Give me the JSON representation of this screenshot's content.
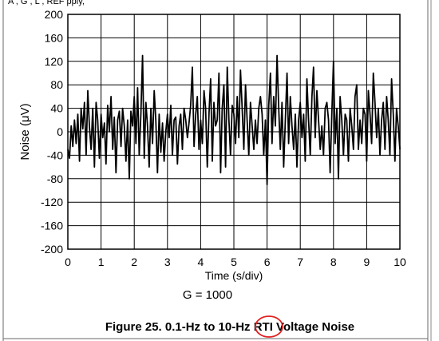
{
  "header": {
    "text": "A    ,    G    ,    L    ,    REF    pply,"
  },
  "chart_data": {
    "type": "line",
    "xlabel": "Time (s/div)",
    "ylabel": "Noise (μV)",
    "xlim": [
      0,
      10
    ],
    "ylim": [
      -200,
      200
    ],
    "x_ticks": [
      "0",
      "1",
      "2",
      "3",
      "4",
      "5",
      "6",
      "7",
      "8",
      "9",
      "10"
    ],
    "y_ticks": [
      "200",
      "160",
      "120",
      "80",
      "40",
      "0",
      "-40",
      "-80",
      "-120",
      "-160",
      "-200"
    ],
    "grid": true,
    "series": [
      {
        "x": [
          0.0,
          0.05,
          0.1,
          0.15,
          0.2,
          0.25,
          0.3,
          0.35,
          0.4,
          0.45,
          0.5,
          0.55,
          0.6,
          0.65,
          0.7,
          0.75,
          0.8,
          0.85,
          0.9,
          0.95,
          1.0,
          1.05,
          1.1,
          1.15,
          1.2,
          1.25,
          1.3,
          1.35,
          1.4,
          1.45,
          1.5,
          1.55,
          1.6,
          1.65,
          1.7,
          1.75,
          1.8,
          1.85,
          1.9,
          1.95,
          2.0,
          2.05,
          2.1,
          2.15,
          2.2,
          2.25,
          2.3,
          2.35,
          2.4,
          2.45,
          2.5,
          2.55,
          2.6,
          2.65,
          2.7,
          2.75,
          2.8,
          2.85,
          2.9,
          2.95,
          3.0,
          3.05,
          3.1,
          3.15,
          3.2,
          3.25,
          3.3,
          3.35,
          3.4,
          3.45,
          3.5,
          3.55,
          3.6,
          3.65,
          3.7,
          3.75,
          3.8,
          3.85,
          3.9,
          3.95,
          4.0,
          4.05,
          4.1,
          4.15,
          4.2,
          4.25,
          4.3,
          4.35,
          4.4,
          4.45,
          4.5,
          4.55,
          4.6,
          4.65,
          4.7,
          4.75,
          4.8,
          4.85,
          4.9,
          4.95,
          5.0,
          5.05,
          5.1,
          5.15,
          5.2,
          5.25,
          5.3,
          5.35,
          5.4,
          5.45,
          5.5,
          5.55,
          5.6,
          5.65,
          5.7,
          5.75,
          5.8,
          5.85,
          5.9,
          5.95,
          6.0,
          6.05,
          6.1,
          6.15,
          6.2,
          6.25,
          6.3,
          6.35,
          6.4,
          6.45,
          6.5,
          6.55,
          6.6,
          6.65,
          6.7,
          6.75,
          6.8,
          6.85,
          6.9,
          6.95,
          7.0,
          7.05,
          7.1,
          7.15,
          7.2,
          7.25,
          7.3,
          7.35,
          7.4,
          7.45,
          7.5,
          7.55,
          7.6,
          7.65,
          7.7,
          7.75,
          7.8,
          7.85,
          7.9,
          7.95,
          8.0,
          8.05,
          8.1,
          8.15,
          8.2,
          8.25,
          8.3,
          8.35,
          8.4,
          8.45,
          8.5,
          8.55,
          8.6,
          8.65,
          8.7,
          8.75,
          8.8,
          8.85,
          8.9,
          8.95,
          9.0,
          9.05,
          9.1,
          9.15,
          9.2,
          9.25,
          9.3,
          9.35,
          9.4,
          9.45,
          9.5,
          9.55,
          9.6,
          9.65,
          9.7,
          9.75,
          9.8,
          9.85,
          9.9,
          9.95,
          10.0
        ],
        "y": [
          -30,
          -45,
          10,
          -25,
          20,
          -20,
          30,
          -50,
          40,
          5,
          50,
          -40,
          70,
          10,
          -30,
          40,
          -60,
          50,
          20,
          -45,
          30,
          -10,
          15,
          -55,
          45,
          0,
          60,
          -30,
          25,
          -70,
          20,
          35,
          -25,
          40,
          10,
          -50,
          20,
          -80,
          35,
          10,
          60,
          -20,
          75,
          -40,
          30,
          130,
          -45,
          50,
          10,
          -60,
          40,
          -20,
          70,
          20,
          -70,
          30,
          -35,
          15,
          -50,
          0,
          30,
          -10,
          45,
          -40,
          20,
          25,
          -55,
          10,
          30,
          -30,
          40,
          20,
          -10,
          15,
          45,
          110,
          -25,
          30,
          60,
          -30,
          20,
          -20,
          70,
          40,
          -60,
          30,
          90,
          -50,
          50,
          10,
          20,
          100,
          -70,
          40,
          80,
          -60,
          110,
          20,
          -40,
          45,
          30,
          -20,
          60,
          -10,
          105,
          40,
          -30,
          80,
          20,
          -40,
          50,
          10,
          -30,
          20,
          -20,
          40,
          60,
          30,
          -40,
          20,
          -90,
          45,
          100,
          -20,
          60,
          10,
          130,
          40,
          -30,
          50,
          -60,
          20,
          100,
          -20,
          60,
          10,
          -30,
          30,
          -60,
          20,
          50,
          -10,
          30,
          -50,
          90,
          20,
          -40,
          60,
          110,
          -10,
          70,
          20,
          -30,
          10,
          -40,
          40,
          50,
          20,
          -70,
          30,
          120,
          -20,
          40,
          -80,
          60,
          20,
          -40,
          30,
          20,
          -50,
          40,
          10,
          -30,
          60,
          80,
          -30,
          20,
          -20,
          40,
          30,
          -50,
          70,
          30,
          -20,
          100,
          50,
          -10,
          40,
          -40,
          20,
          50,
          -30,
          60,
          20,
          -40,
          90,
          30,
          -50,
          40,
          10,
          -30
        ]
      }
    ]
  },
  "caption": {
    "gain_label": "G = 1000",
    "figure_prefix": "Figure 25. 0.1-Hz to 10-Hz ",
    "figure_highlight": "RTI",
    "figure_suffix": " Voltage Noise"
  },
  "colors": {
    "trace": "#000000",
    "grid": "#000000",
    "highlight_circle": "#e02020",
    "border": "#6a6a6a"
  }
}
